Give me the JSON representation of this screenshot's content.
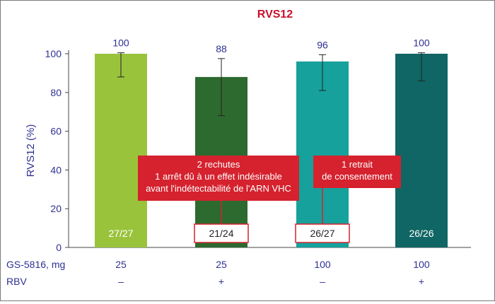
{
  "chart_data": {
    "type": "bar",
    "title": "RVS12",
    "ylabel": "RVS12 (%)",
    "ylim": [
      0,
      100
    ],
    "yticks": [
      0,
      20,
      40,
      60,
      80,
      100
    ],
    "categories": [
      "25 / –",
      "25 / +",
      "100 / –",
      "100 / +"
    ],
    "values": [
      100,
      88,
      96,
      100
    ],
    "value_labels": [
      "100",
      "88",
      "96",
      "100"
    ],
    "error_bars": [
      {
        "low": 88,
        "high": 100.5
      },
      {
        "low": 68,
        "high": 97.5
      },
      {
        "low": 81,
        "high": 99.5
      },
      {
        "low": 86,
        "high": 100.5
      }
    ],
    "ratios": [
      "27/27",
      "21/24",
      "26/27",
      "26/26"
    ],
    "bar_colors": [
      "#9ac33c",
      "#2d6a2f",
      "#16a19c",
      "#0f6664"
    ],
    "rows": [
      {
        "label": "GS-5816, mg",
        "values": [
          "25",
          "25",
          "100",
          "100"
        ]
      },
      {
        "label": "RBV",
        "values": [
          "–",
          "+",
          "–",
          "+"
        ]
      }
    ],
    "annotations": [
      {
        "lines": [
          "2 rechutes",
          "1 arrêt dû à un effet indésirable",
          "avant l'indétectabilité de l'ARN VHC"
        ],
        "bar_index": 1
      },
      {
        "lines": [
          "1 retrait",
          "de consentement"
        ],
        "bar_index": 2
      }
    ],
    "colors": {
      "title": "#c8102e",
      "axis_text": "#2e3192",
      "callout_bg": "#d5222e",
      "callout_text": "#ffffff"
    }
  }
}
